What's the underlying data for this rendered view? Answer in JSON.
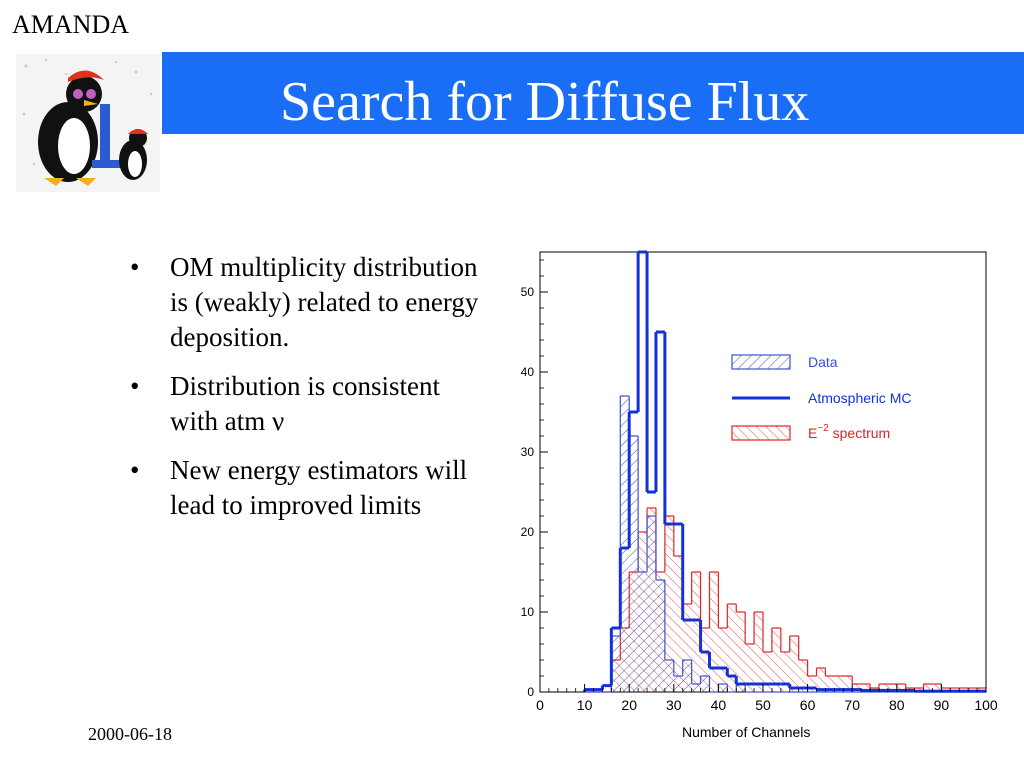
{
  "header": {
    "brand": "AMANDA",
    "title": "Search for Diffuse Flux"
  },
  "bullets": [
    "OM multiplicity distribution is (weakly) related to energy deposition.",
    "Distribution is consistent with atm ν",
    "New energy estimators will lead to improved limits"
  ],
  "footer": {
    "date": "2000-06-18"
  },
  "colors": {
    "title_bar": "#1a6ef5",
    "data": "#3a4fd6",
    "mc": "#1232d6",
    "e2": "#e02424"
  },
  "chart_data": {
    "type": "histogram",
    "xlabel": "Number of Channels",
    "ylabel": "",
    "xlim": [
      0,
      100
    ],
    "ylim": [
      0,
      55
    ],
    "xticks": [
      0,
      10,
      20,
      30,
      40,
      50,
      60,
      70,
      80,
      90,
      100
    ],
    "yticks": [
      0,
      10,
      20,
      30,
      40,
      50
    ],
    "legend_position": "right",
    "bin_width": 2,
    "series": [
      {
        "name": "Data",
        "style": "hatched",
        "bins_start": 10,
        "values": [
          0,
          0,
          0,
          7,
          37,
          32,
          15,
          22,
          14,
          4,
          2,
          4,
          1,
          2,
          0,
          1,
          0,
          1,
          0,
          0,
          0,
          0,
          0,
          0,
          0,
          0,
          0,
          0,
          0,
          0,
          0,
          0,
          0,
          0,
          0,
          0,
          0,
          0,
          0,
          0,
          0,
          0,
          0,
          0,
          0
        ]
      },
      {
        "name": "Atmospheric MC",
        "style": "thick-line",
        "bins_start": 10,
        "values": [
          0.3,
          0.3,
          0.8,
          8,
          18,
          35,
          56,
          25,
          45,
          21,
          21,
          9,
          9,
          5,
          3,
          3,
          2,
          1,
          1,
          1,
          1,
          1,
          1,
          0.5,
          0.5,
          0.5,
          0.3,
          0.3,
          0.3,
          0.3,
          0.3,
          0.2,
          0.2,
          0.2,
          0.2,
          0.2,
          0.2,
          0.1,
          0.1,
          0.1,
          0.1,
          0.1,
          0.1,
          0.1,
          0.1
        ]
      },
      {
        "name": "E^-2 spectrum",
        "label_base": "E",
        "label_exp": "−2",
        "label_rest": " spectrum",
        "style": "hatched-red",
        "bins_start": 10,
        "values": [
          0,
          0,
          0,
          4,
          8,
          15,
          20,
          23,
          15,
          22,
          17,
          11,
          15,
          8,
          15,
          8,
          11,
          10,
          6,
          10,
          5,
          8,
          5,
          7,
          4,
          2,
          3,
          2,
          2,
          2,
          1,
          1,
          0.5,
          1,
          1,
          1,
          0.5,
          0.5,
          1,
          1,
          0.5,
          0.5,
          0.5,
          0.5,
          0.5
        ]
      }
    ]
  }
}
